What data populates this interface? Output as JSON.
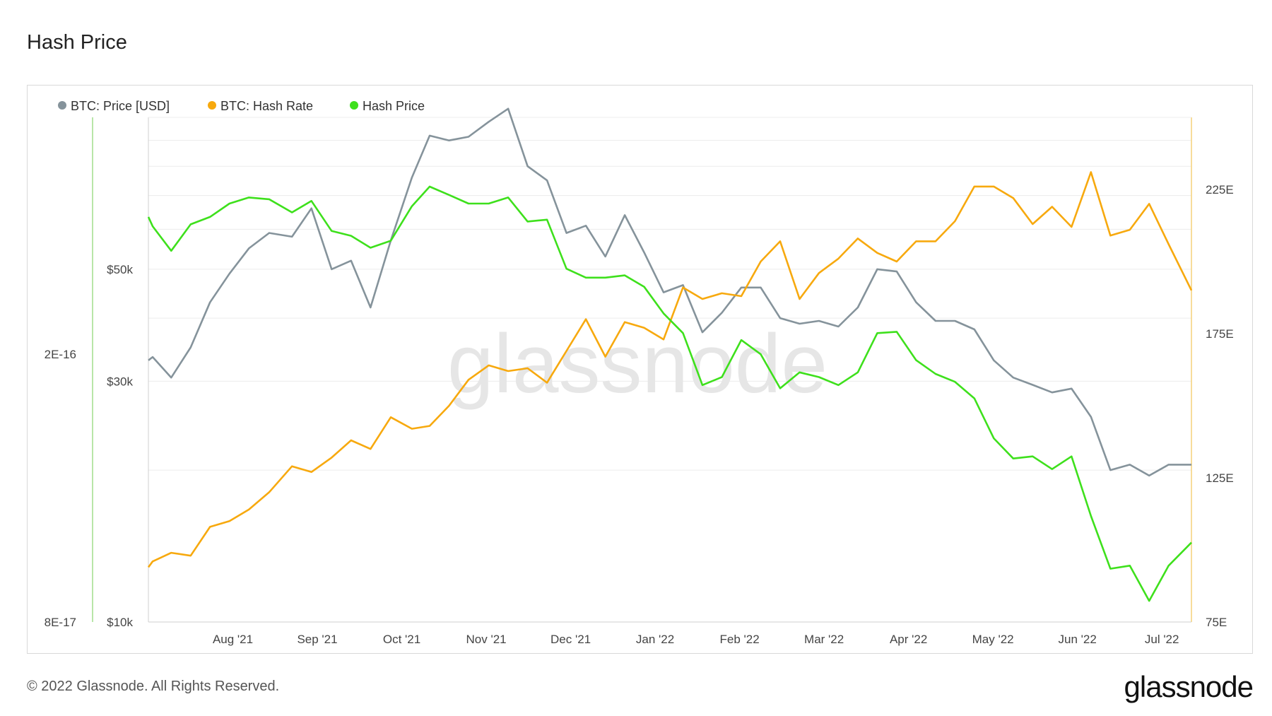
{
  "title": "Hash Price",
  "footer": "© 2022 Glassnode. All Rights Reserved.",
  "brand": "glassnode",
  "watermark": "glassnode",
  "colors": {
    "price": "#85939b",
    "hash_rate": "#f7a90e",
    "hash_price": "#3ee01c",
    "grid": "#ececec"
  },
  "chart_data": {
    "type": "line",
    "legend": [
      "BTC: Price [USD]",
      "BTC: Hash Rate",
      "Hash Price"
    ],
    "legend_position": "top-left",
    "x_ticks": [
      "Aug '21",
      "Sep '21",
      "Oct '21",
      "Nov '21",
      "Dec '21",
      "Jan '22",
      "Feb '22",
      "Mar '22",
      "Apr '22",
      "May '22",
      "Jun '22",
      "Jul '22"
    ],
    "x_range_months": [
      0,
      12.35
    ],
    "axes": {
      "price": {
        "side": "left-inner",
        "scale": "log",
        "ticks": [
          "$10k",
          "$30k",
          "$50k"
        ],
        "tick_values": [
          10000,
          30000,
          50000
        ],
        "range": [
          10000,
          100000
        ]
      },
      "hash_price": {
        "side": "left-outer",
        "scale": "log",
        "ticks": [
          "8E-17",
          "2E-16"
        ],
        "tick_values": [
          8e-17,
          2e-16
        ],
        "range": [
          8e-17,
          4.5e-16
        ]
      },
      "hash_rate": {
        "side": "right",
        "scale": "linear",
        "ticks": [
          "75E",
          "125E",
          "175E",
          "225E"
        ],
        "tick_values": [
          75,
          125,
          175,
          225
        ],
        "range": [
          75,
          250
        ]
      }
    },
    "x": [
      0,
      0.05,
      0.27,
      0.5,
      0.73,
      0.96,
      1.19,
      1.43,
      1.7,
      1.93,
      2.17,
      2.4,
      2.63,
      2.87,
      3.12,
      3.33,
      3.56,
      3.79,
      4.03,
      4.26,
      4.49,
      4.72,
      4.95,
      5.18,
      5.41,
      5.64,
      5.87,
      6.1,
      6.33,
      6.56,
      6.79,
      7.02,
      7.25,
      7.48,
      7.71,
      7.94,
      8.17,
      8.4,
      8.63,
      8.86,
      9.09,
      9.32,
      9.55,
      9.78,
      10.01,
      10.24,
      10.47,
      10.7,
      10.93,
      11.16,
      11.39,
      11.62,
      11.85,
      12.08,
      12.35
    ],
    "series": [
      {
        "name": "BTC: Price [USD]",
        "axis": "price",
        "values": [
          33000,
          33500,
          30500,
          35000,
          43000,
          49000,
          55000,
          59000,
          58000,
          66000,
          50000,
          52000,
          42000,
          57000,
          76000,
          92000,
          90000,
          91500,
          98000,
          104000,
          80000,
          75000,
          59000,
          61000,
          53000,
          64000,
          54000,
          45000,
          46500,
          37500,
          41000,
          46000,
          46000,
          40000,
          39000,
          39500,
          38500,
          42000,
          50000,
          49500,
          43000,
          39500,
          39500,
          38000,
          33000,
          30500,
          29500,
          28500,
          29000,
          25500,
          20000,
          20500,
          19500,
          20500,
          20500
        ]
      },
      {
        "name": "BTC: Hash Rate",
        "axis": "hash_rate",
        "values": [
          94,
          96,
          99,
          98,
          108,
          110,
          114,
          120,
          129,
          127,
          132,
          138,
          135,
          146,
          142,
          143,
          150,
          159,
          164,
          162,
          163,
          158,
          169,
          180,
          167,
          179,
          177,
          173,
          191,
          187,
          189,
          188,
          200,
          207,
          187,
          196,
          201,
          208,
          203,
          200,
          207,
          207,
          214,
          226,
          226,
          222,
          213,
          219,
          212,
          231,
          209,
          211,
          220,
          206,
          190
        ]
      },
      {
        "name": "Hash Price",
        "axis": "hash_price",
        "values": [
          3.2e-16,
          3.1e-16,
          2.85e-16,
          3.12e-16,
          3.2e-16,
          3.35e-16,
          3.42e-16,
          3.4e-16,
          3.25e-16,
          3.38e-16,
          3.05e-16,
          3e-16,
          2.88e-16,
          2.95e-16,
          3.32e-16,
          3.55e-16,
          3.45e-16,
          3.35e-16,
          3.35e-16,
          3.42e-16,
          3.15e-16,
          3.17e-16,
          2.68e-16,
          2.6e-16,
          2.6e-16,
          2.62e-16,
          2.52e-16,
          2.3e-16,
          2.15e-16,
          1.8e-16,
          1.85e-16,
          2.1e-16,
          2e-16,
          1.78e-16,
          1.88e-16,
          1.85e-16,
          1.8e-16,
          1.88e-16,
          2.15e-16,
          2.16e-16,
          1.96e-16,
          1.87e-16,
          1.82e-16,
          1.72e-16,
          1.5e-16,
          1.4e-16,
          1.41e-16,
          1.35e-16,
          1.41e-16,
          1.15e-16,
          9.6e-17,
          9.7e-17,
          8.6e-17,
          9.7e-17,
          1.05e-16
        ]
      }
    ]
  }
}
